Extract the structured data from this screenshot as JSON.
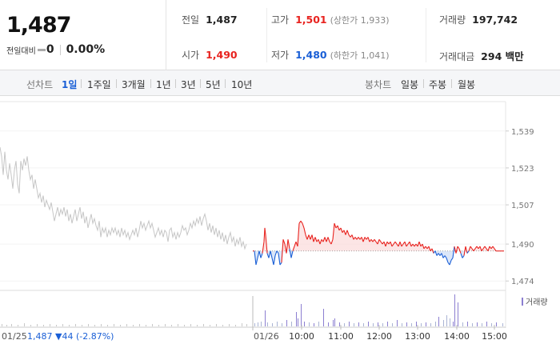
{
  "summary": {
    "current_price": "1,487",
    "change_label": "전일대비",
    "change_value": "0",
    "change_rate": "0.00%",
    "prev_close": {
      "label": "전일",
      "value": "1,487"
    },
    "high": {
      "label": "고가",
      "value": "1,501",
      "sub": "(상한가 1,933)"
    },
    "volume": {
      "label": "거래량",
      "value": "197,742"
    },
    "open": {
      "label": "시가",
      "value": "1,490"
    },
    "low": {
      "label": "저가",
      "value": "1,480",
      "sub": "(하한가 1,041)"
    },
    "amount": {
      "label": "거래대금",
      "value": "294 백만"
    },
    "up_color": "#e8231f",
    "down_color": "#1a5fd6"
  },
  "toolbar": {
    "line_label": "선차트",
    "line_periods": [
      "1일",
      "1주일",
      "3개월",
      "1년",
      "3년",
      "5년",
      "10년"
    ],
    "active_period": "1일",
    "candle_label": "봉차트",
    "candle_periods": [
      "일봉",
      "주봉",
      "월봉"
    ]
  },
  "chart_data": {
    "type": "line",
    "y_ticks": [
      "1,539",
      "1,523",
      "1,507",
      "1,490",
      "1,474"
    ],
    "y_tick_values": [
      1539,
      1523,
      1507,
      1490,
      1474
    ],
    "ylim": [
      1472,
      1541
    ],
    "reference_price": 1487,
    "prev_day_label": "01/25",
    "prev_day_info": "1,487 ▼44 (-2.87%)",
    "day_label": "01/26",
    "time_labels": [
      "10:00",
      "11:00",
      "12:00",
      "13:00",
      "14:00",
      "15:00"
    ],
    "volume_legend": "거래량",
    "prev_day_series": [
      [
        0,
        1532
      ],
      [
        2,
        1528
      ],
      [
        4,
        1520
      ],
      [
        6,
        1530
      ],
      [
        8,
        1522
      ],
      [
        10,
        1518
      ],
      [
        12,
        1525
      ],
      [
        14,
        1520
      ],
      [
        16,
        1514
      ],
      [
        18,
        1522
      ],
      [
        20,
        1526
      ],
      [
        22,
        1516
      ],
      [
        24,
        1512
      ],
      [
        26,
        1526
      ],
      [
        28,
        1522
      ],
      [
        30,
        1527
      ],
      [
        32,
        1524
      ],
      [
        34,
        1528
      ],
      [
        36,
        1522
      ],
      [
        38,
        1518
      ],
      [
        40,
        1520
      ],
      [
        42,
        1514
      ],
      [
        44,
        1518
      ],
      [
        46,
        1514
      ],
      [
        48,
        1510
      ],
      [
        50,
        1512
      ],
      [
        52,
        1508
      ],
      [
        54,
        1511
      ],
      [
        56,
        1506
      ],
      [
        58,
        1509
      ],
      [
        60,
        1507
      ],
      [
        62,
        1505
      ],
      [
        64,
        1508
      ],
      [
        66,
        1504
      ],
      [
        68,
        1500
      ],
      [
        70,
        1503
      ],
      [
        72,
        1506
      ],
      [
        74,
        1502
      ],
      [
        76,
        1505
      ],
      [
        78,
        1503
      ],
      [
        80,
        1506
      ],
      [
        82,
        1502
      ],
      [
        84,
        1505
      ],
      [
        86,
        1500
      ],
      [
        88,
        1503
      ],
      [
        90,
        1499
      ],
      [
        92,
        1502
      ],
      [
        94,
        1505
      ],
      [
        96,
        1500
      ],
      [
        98,
        1503
      ],
      [
        100,
        1506
      ],
      [
        102,
        1501
      ],
      [
        104,
        1504
      ],
      [
        106,
        1499
      ],
      [
        108,
        1502
      ],
      [
        110,
        1497
      ],
      [
        112,
        1500
      ],
      [
        114,
        1503
      ],
      [
        116,
        1499
      ],
      [
        118,
        1501
      ],
      [
        120,
        1498
      ],
      [
        122,
        1496
      ],
      [
        124,
        1500
      ],
      [
        126,
        1493
      ],
      [
        128,
        1497
      ],
      [
        130,
        1495
      ],
      [
        132,
        1497
      ],
      [
        134,
        1493
      ],
      [
        136,
        1496
      ],
      [
        138,
        1494
      ],
      [
        140,
        1497
      ],
      [
        142,
        1495
      ],
      [
        144,
        1497
      ],
      [
        146,
        1494
      ],
      [
        148,
        1496
      ],
      [
        150,
        1493
      ],
      [
        152,
        1497
      ],
      [
        154,
        1494
      ],
      [
        156,
        1496
      ],
      [
        158,
        1493
      ],
      [
        160,
        1495
      ],
      [
        162,
        1492
      ],
      [
        164,
        1494
      ],
      [
        166,
        1496
      ],
      [
        168,
        1494
      ],
      [
        170,
        1497
      ],
      [
        172,
        1493
      ],
      [
        174,
        1496
      ],
      [
        176,
        1500
      ],
      [
        178,
        1497
      ],
      [
        180,
        1499
      ],
      [
        182,
        1496
      ],
      [
        184,
        1498
      ],
      [
        186,
        1500
      ],
      [
        188,
        1497
      ],
      [
        190,
        1499
      ],
      [
        192,
        1496
      ],
      [
        194,
        1493
      ],
      [
        196,
        1495
      ],
      [
        198,
        1497
      ],
      [
        200,
        1494
      ],
      [
        202,
        1496
      ],
      [
        204,
        1493
      ],
      [
        206,
        1496
      ],
      [
        208,
        1495
      ],
      [
        210,
        1491
      ],
      [
        212,
        1496
      ],
      [
        214,
        1497
      ],
      [
        216,
        1493
      ],
      [
        218,
        1495
      ],
      [
        220,
        1492
      ],
      [
        222,
        1495
      ],
      [
        224,
        1493
      ],
      [
        226,
        1495
      ],
      [
        228,
        1498
      ],
      [
        230,
        1496
      ],
      [
        232,
        1497
      ],
      [
        234,
        1494
      ],
      [
        236,
        1496
      ],
      [
        238,
        1499
      ],
      [
        240,
        1497
      ],
      [
        242,
        1500
      ],
      [
        244,
        1498
      ],
      [
        246,
        1501
      ],
      [
        248,
        1499
      ],
      [
        250,
        1502
      ],
      [
        252,
        1498
      ],
      [
        254,
        1501
      ],
      [
        256,
        1503
      ],
      [
        258,
        1500
      ],
      [
        260,
        1496
      ],
      [
        262,
        1499
      ],
      [
        264,
        1495
      ],
      [
        266,
        1498
      ],
      [
        268,
        1494
      ],
      [
        270,
        1497
      ],
      [
        272,
        1493
      ],
      [
        274,
        1496
      ],
      [
        276,
        1492
      ],
      [
        278,
        1495
      ],
      [
        280,
        1491
      ],
      [
        282,
        1494
      ],
      [
        284,
        1490
      ],
      [
        286,
        1493
      ],
      [
        288,
        1495
      ],
      [
        290,
        1491
      ],
      [
        292,
        1493
      ],
      [
        294,
        1489
      ],
      [
        296,
        1492
      ],
      [
        298,
        1490
      ],
      [
        300,
        1493
      ],
      [
        302,
        1489
      ],
      [
        304,
        1491
      ],
      [
        306,
        1488
      ],
      [
        308,
        1490
      ]
    ],
    "day_series": [
      [
        316,
        1487
      ],
      [
        318,
        1487
      ],
      [
        320,
        1481
      ],
      [
        322,
        1484
      ],
      [
        324,
        1487
      ],
      [
        326,
        1484
      ],
      [
        328,
        1486
      ],
      [
        330,
        1491
      ],
      [
        331,
        1497
      ],
      [
        332,
        1494
      ],
      [
        334,
        1486
      ],
      [
        336,
        1484
      ],
      [
        338,
        1487
      ],
      [
        340,
        1484
      ],
      [
        342,
        1481
      ],
      [
        344,
        1485
      ],
      [
        346,
        1487
      ],
      [
        348,
        1486
      ],
      [
        350,
        1481
      ],
      [
        352,
        1482
      ],
      [
        354,
        1492
      ],
      [
        356,
        1490
      ],
      [
        358,
        1486
      ],
      [
        360,
        1492
      ],
      [
        362,
        1488
      ],
      [
        364,
        1484
      ],
      [
        366,
        1487
      ],
      [
        368,
        1489
      ],
      [
        370,
        1491
      ],
      [
        372,
        1489
      ],
      [
        374,
        1499
      ],
      [
        376,
        1500
      ],
      [
        378,
        1499
      ],
      [
        380,
        1497
      ],
      [
        382,
        1494
      ],
      [
        384,
        1492
      ],
      [
        386,
        1494
      ],
      [
        388,
        1492
      ],
      [
        390,
        1494
      ],
      [
        392,
        1491
      ],
      [
        394,
        1493
      ],
      [
        396,
        1491
      ],
      [
        398,
        1492
      ],
      [
        400,
        1490
      ],
      [
        402,
        1492
      ],
      [
        404,
        1491
      ],
      [
        406,
        1493
      ],
      [
        408,
        1491
      ],
      [
        410,
        1493
      ],
      [
        412,
        1491
      ],
      [
        414,
        1490
      ],
      [
        416,
        1492
      ],
      [
        418,
        1499
      ],
      [
        420,
        1497
      ],
      [
        422,
        1498
      ],
      [
        424,
        1496
      ],
      [
        426,
        1497
      ],
      [
        428,
        1495
      ],
      [
        430,
        1496
      ],
      [
        432,
        1494
      ],
      [
        434,
        1496
      ],
      [
        436,
        1494
      ],
      [
        438,
        1493
      ],
      [
        440,
        1494
      ],
      [
        442,
        1492
      ],
      [
        444,
        1493
      ],
      [
        446,
        1492
      ],
      [
        448,
        1493
      ],
      [
        450,
        1492
      ],
      [
        452,
        1493
      ],
      [
        454,
        1491
      ],
      [
        456,
        1493
      ],
      [
        458,
        1492
      ],
      [
        460,
        1493
      ],
      [
        462,
        1491
      ],
      [
        464,
        1492
      ],
      [
        466,
        1491
      ],
      [
        468,
        1492
      ],
      [
        470,
        1491
      ],
      [
        472,
        1490
      ],
      [
        474,
        1492
      ],
      [
        476,
        1491
      ],
      [
        478,
        1490
      ],
      [
        480,
        1491
      ],
      [
        482,
        1489
      ],
      [
        484,
        1491
      ],
      [
        486,
        1490
      ],
      [
        488,
        1491
      ],
      [
        490,
        1489
      ],
      [
        492,
        1490
      ],
      [
        494,
        1491
      ],
      [
        496,
        1490
      ],
      [
        498,
        1489
      ],
      [
        500,
        1491
      ],
      [
        502,
        1489
      ],
      [
        504,
        1490
      ],
      [
        506,
        1491
      ],
      [
        508,
        1489
      ],
      [
        510,
        1490
      ],
      [
        512,
        1491
      ],
      [
        514,
        1489
      ],
      [
        516,
        1490
      ],
      [
        518,
        1489
      ],
      [
        520,
        1490
      ],
      [
        522,
        1489
      ],
      [
        524,
        1491
      ],
      [
        526,
        1489
      ],
      [
        528,
        1490
      ],
      [
        530,
        1488
      ],
      [
        532,
        1489
      ],
      [
        534,
        1488
      ],
      [
        536,
        1489
      ],
      [
        538,
        1487
      ],
      [
        540,
        1488
      ],
      [
        542,
        1486
      ],
      [
        544,
        1487
      ],
      [
        546,
        1485
      ],
      [
        548,
        1486
      ],
      [
        550,
        1485
      ],
      [
        552,
        1486
      ],
      [
        554,
        1484
      ],
      [
        556,
        1485
      ],
      [
        558,
        1484
      ],
      [
        560,
        1482
      ],
      [
        562,
        1481
      ],
      [
        564,
        1483
      ],
      [
        566,
        1484
      ],
      [
        568,
        1489
      ],
      [
        570,
        1486
      ],
      [
        572,
        1489
      ],
      [
        574,
        1488
      ],
      [
        576,
        1486
      ],
      [
        578,
        1484
      ],
      [
        580,
        1485
      ],
      [
        582,
        1489
      ],
      [
        584,
        1486
      ],
      [
        586,
        1487
      ],
      [
        588,
        1489
      ],
      [
        590,
        1488
      ],
      [
        592,
        1487
      ],
      [
        594,
        1488
      ],
      [
        596,
        1489
      ],
      [
        598,
        1488
      ],
      [
        600,
        1489
      ],
      [
        602,
        1487
      ],
      [
        604,
        1488
      ],
      [
        606,
        1489
      ],
      [
        608,
        1488
      ],
      [
        610,
        1487
      ],
      [
        612,
        1489
      ],
      [
        614,
        1488
      ],
      [
        616,
        1489
      ],
      [
        618,
        1488
      ],
      [
        620,
        1487
      ],
      [
        622,
        1487
      ],
      [
        624,
        1487
      ],
      [
        626,
        1487
      ],
      [
        628,
        1487
      ],
      [
        630,
        1487
      ]
    ],
    "volume_prev": [
      [
        2,
        3
      ],
      [
        8,
        2
      ],
      [
        14,
        3
      ],
      [
        22,
        2
      ],
      [
        30,
        4
      ],
      [
        38,
        2
      ],
      [
        46,
        3
      ],
      [
        54,
        2
      ],
      [
        62,
        3
      ],
      [
        70,
        2
      ],
      [
        78,
        3
      ],
      [
        86,
        2
      ],
      [
        94,
        3
      ],
      [
        102,
        2
      ],
      [
        110,
        3
      ],
      [
        118,
        2
      ],
      [
        126,
        3
      ],
      [
        134,
        2
      ],
      [
        142,
        3
      ],
      [
        150,
        2
      ],
      [
        158,
        3
      ],
      [
        166,
        2
      ],
      [
        174,
        3
      ],
      [
        182,
        2
      ],
      [
        190,
        3
      ],
      [
        198,
        2
      ],
      [
        206,
        3
      ],
      [
        214,
        2
      ],
      [
        222,
        3
      ],
      [
        230,
        2
      ],
      [
        238,
        3
      ],
      [
        246,
        2
      ],
      [
        254,
        3
      ],
      [
        262,
        2
      ],
      [
        270,
        3
      ],
      [
        278,
        2
      ],
      [
        286,
        3
      ],
      [
        294,
        2
      ],
      [
        302,
        4
      ],
      [
        308,
        3
      ]
    ],
    "volume_day": [
      [
        318,
        4,
        "d"
      ],
      [
        322,
        5,
        "d"
      ],
      [
        326,
        6,
        "d"
      ],
      [
        331,
        20,
        "u"
      ],
      [
        334,
        5,
        "d"
      ],
      [
        340,
        4,
        "d"
      ],
      [
        346,
        6,
        "d"
      ],
      [
        352,
        4,
        "d"
      ],
      [
        358,
        8,
        "u"
      ],
      [
        364,
        6,
        "d"
      ],
      [
        370,
        18,
        "u"
      ],
      [
        372,
        10,
        "u"
      ],
      [
        376,
        28,
        "u"
      ],
      [
        380,
        6,
        "u"
      ],
      [
        386,
        5,
        "d"
      ],
      [
        392,
        4,
        "u"
      ],
      [
        398,
        6,
        "d"
      ],
      [
        404,
        22,
        "u"
      ],
      [
        410,
        5,
        "u"
      ],
      [
        416,
        8,
        "u"
      ],
      [
        418,
        10,
        "u"
      ],
      [
        424,
        5,
        "u"
      ],
      [
        430,
        4,
        "d"
      ],
      [
        436,
        6,
        "u"
      ],
      [
        442,
        4,
        "d"
      ],
      [
        448,
        5,
        "u"
      ],
      [
        454,
        4,
        "d"
      ],
      [
        460,
        6,
        "u"
      ],
      [
        466,
        4,
        "d"
      ],
      [
        472,
        5,
        "u"
      ],
      [
        478,
        4,
        "d"
      ],
      [
        484,
        6,
        "u"
      ],
      [
        490,
        4,
        "d"
      ],
      [
        496,
        8,
        "u"
      ],
      [
        502,
        4,
        "d"
      ],
      [
        508,
        5,
        "u"
      ],
      [
        514,
        4,
        "d"
      ],
      [
        520,
        6,
        "u"
      ],
      [
        526,
        4,
        "d"
      ],
      [
        532,
        5,
        "u"
      ],
      [
        538,
        4,
        "d"
      ],
      [
        544,
        6,
        "d"
      ],
      [
        548,
        12,
        "u"
      ],
      [
        554,
        8,
        "d"
      ],
      [
        558,
        14,
        "d"
      ],
      [
        562,
        10,
        "d"
      ],
      [
        566,
        6,
        "u"
      ],
      [
        568,
        40,
        "u"
      ],
      [
        572,
        30,
        "u"
      ],
      [
        578,
        5,
        "d"
      ],
      [
        584,
        6,
        "u"
      ],
      [
        590,
        4,
        "d"
      ],
      [
        596,
        5,
        "u"
      ],
      [
        602,
        4,
        "d"
      ],
      [
        608,
        6,
        "u"
      ],
      [
        614,
        4,
        "d"
      ],
      [
        620,
        5,
        "u"
      ],
      [
        628,
        4,
        "d"
      ]
    ]
  }
}
